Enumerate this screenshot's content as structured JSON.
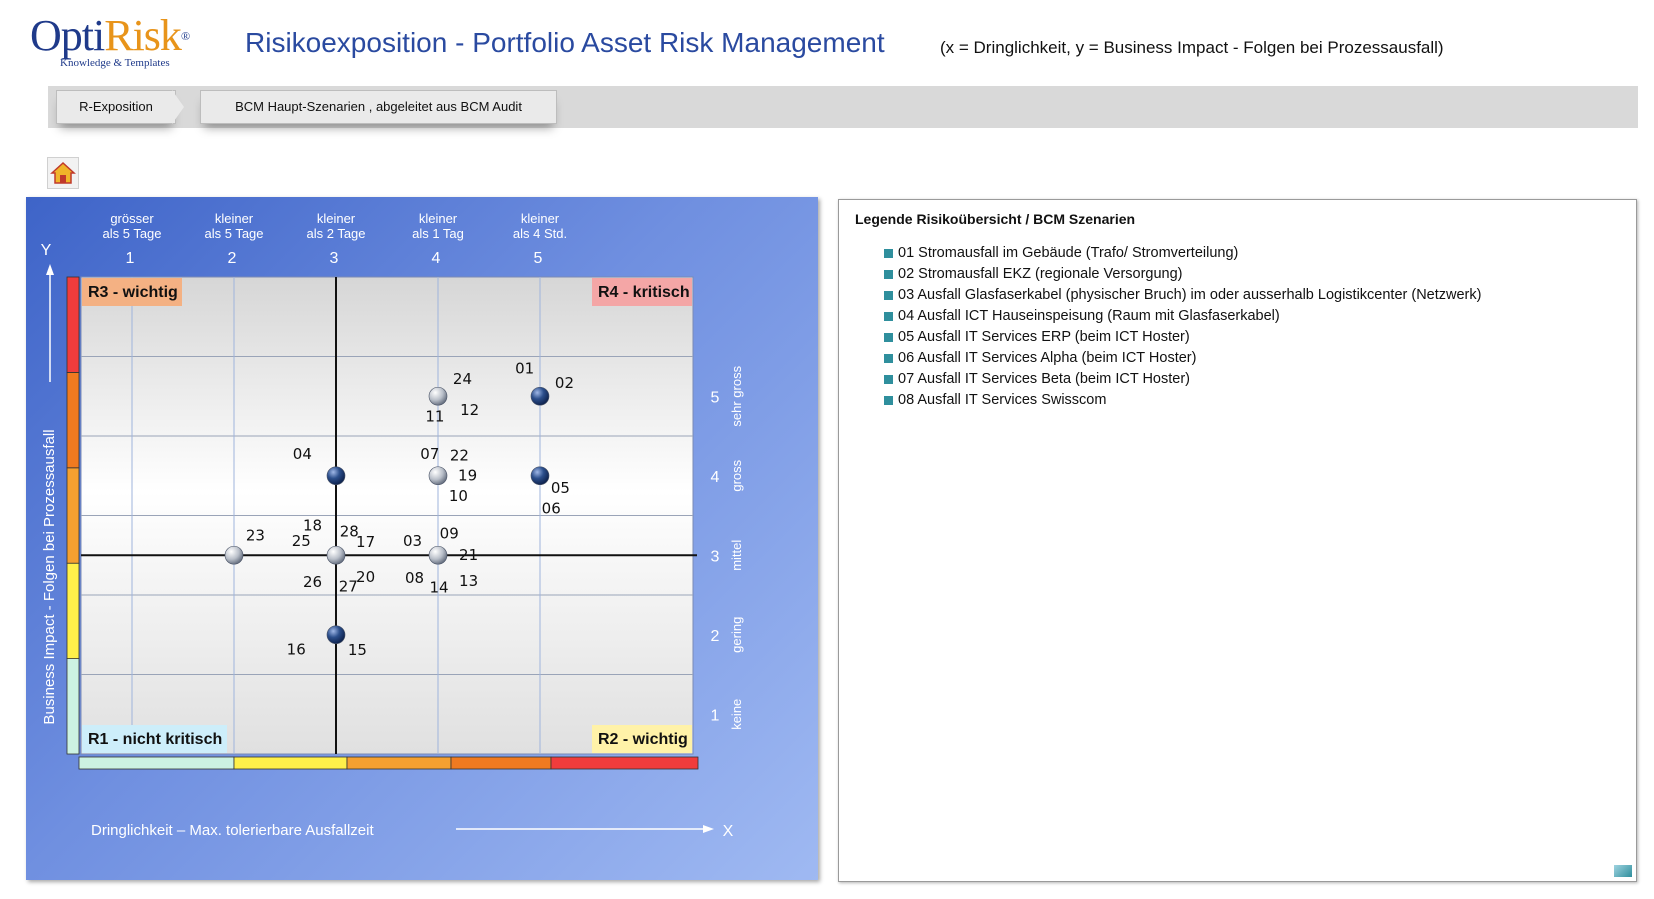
{
  "app": {
    "logo_text_1": "Opti",
    "logo_text_2": "Risk",
    "logo_reg": "®",
    "logo_tagline": "Knowledge & Templates",
    "title": "Risikoexposition - Portfolio Asset Risk Management",
    "subtitle": "(x = Dringlichkeit,    y = Business Impact  -  Folgen bei Prozessausfall)"
  },
  "breadcrumb": {
    "items": [
      {
        "label": "R-Exposition"
      },
      {
        "label": "BCM Haupt-Szenarien , abgeleitet aus BCM Audit"
      }
    ]
  },
  "home_icon": "home-icon",
  "chart_data": {
    "type": "scatter",
    "title": "",
    "xlabel": "Dringlichkeit  –  Max. tolerierbare Ausfallzeit",
    "x_axis_letter": "X",
    "ylabel": "Business Impact  -  Folgen bei Prozessausfall",
    "y_axis_letter": "Y",
    "xlim": [
      0.5,
      6.5
    ],
    "ylim": [
      0.5,
      6.5
    ],
    "x_ticks": [
      {
        "value": 1,
        "line1": "grösser",
        "line2": "als 5 Tage"
      },
      {
        "value": 2,
        "line1": "kleiner",
        "line2": "als 5 Tage"
      },
      {
        "value": 3,
        "line1": "kleiner",
        "line2": "als 2 Tage"
      },
      {
        "value": 4,
        "line1": "kleiner",
        "line2": "als 1 Tag"
      },
      {
        "value": 5,
        "line1": "kleiner",
        "line2": "als 4 Std."
      }
    ],
    "y_ticks": [
      {
        "value": 1,
        "label": "keine"
      },
      {
        "value": 2,
        "label": "gering"
      },
      {
        "value": 3,
        "label": "mittel"
      },
      {
        "value": 4,
        "label": "gross"
      },
      {
        "value": 5,
        "label": "sehr gross"
      }
    ],
    "quadrants": [
      {
        "id": "R3",
        "label": "R3 - wichtig",
        "corner": "top-left",
        "color": "#f4b183"
      },
      {
        "id": "R4",
        "label": "R4 - kritisch",
        "corner": "top-right",
        "color": "#f4a6a6"
      },
      {
        "id": "R1",
        "label": "R1 - nicht kritisch",
        "corner": "bottom-left",
        "color": "#cdeefa"
      },
      {
        "id": "R2",
        "label": "R2 - wichtig",
        "corner": "bottom-right",
        "color": "#fff2a8"
      }
    ],
    "points": [
      {
        "x": 4,
        "y": 5,
        "style": "light"
      },
      {
        "x": 5,
        "y": 5,
        "style": "dark"
      },
      {
        "x": 3,
        "y": 4,
        "style": "dark"
      },
      {
        "x": 4,
        "y": 4,
        "style": "light"
      },
      {
        "x": 5,
        "y": 4,
        "style": "dark"
      },
      {
        "x": 2,
        "y": 3,
        "style": "light"
      },
      {
        "x": 3,
        "y": 3,
        "style": "light"
      },
      {
        "x": 4,
        "y": 3,
        "style": "light"
      },
      {
        "x": 3,
        "y": 2,
        "style": "dark"
      }
    ],
    "point_labels": [
      {
        "text": "24",
        "x": 4.24,
        "y": 5.21
      },
      {
        "text": "01",
        "x": 4.85,
        "y": 5.34
      },
      {
        "text": "02",
        "x": 5.24,
        "y": 5.16
      },
      {
        "text": "11",
        "x": 3.97,
        "y": 4.74
      },
      {
        "text": "12",
        "x": 4.31,
        "y": 4.82
      },
      {
        "text": "04",
        "x": 2.67,
        "y": 4.27
      },
      {
        "text": "07",
        "x": 3.92,
        "y": 4.27
      },
      {
        "text": "22",
        "x": 4.21,
        "y": 4.25
      },
      {
        "text": "19",
        "x": 4.29,
        "y": 4.0
      },
      {
        "text": "10",
        "x": 4.2,
        "y": 3.74
      },
      {
        "text": "05",
        "x": 5.2,
        "y": 3.84
      },
      {
        "text": "06",
        "x": 5.11,
        "y": 3.58
      },
      {
        "text": "23",
        "x": 2.21,
        "y": 3.24
      },
      {
        "text": "18",
        "x": 2.77,
        "y": 3.37
      },
      {
        "text": "25",
        "x": 2.66,
        "y": 3.17
      },
      {
        "text": "28",
        "x": 3.13,
        "y": 3.29
      },
      {
        "text": "17",
        "x": 3.29,
        "y": 3.16
      },
      {
        "text": "03",
        "x": 3.75,
        "y": 3.17
      },
      {
        "text": "09",
        "x": 4.11,
        "y": 3.27
      },
      {
        "text": "21",
        "x": 4.3,
        "y": 3.0
      },
      {
        "text": "26",
        "x": 2.77,
        "y": 2.66
      },
      {
        "text": "27",
        "x": 3.12,
        "y": 2.6
      },
      {
        "text": "20",
        "x": 3.29,
        "y": 2.72
      },
      {
        "text": "08",
        "x": 3.77,
        "y": 2.71
      },
      {
        "text": "14",
        "x": 4.01,
        "y": 2.59
      },
      {
        "text": "13",
        "x": 4.3,
        "y": 2.67
      },
      {
        "text": "16",
        "x": 2.61,
        "y": 1.81
      },
      {
        "text": "15",
        "x": 3.21,
        "y": 1.8
      }
    ],
    "y_scale_colors": [
      "#ccf2e2",
      "#fff04a",
      "#f5a030",
      "#f07a20",
      "#f03c3c"
    ],
    "x_scale_colors": [
      "#ccf2e2",
      "#fff04a",
      "#f5a030",
      "#f07a20",
      "#f03c3c"
    ],
    "grid": true
  },
  "legend": {
    "title": "Legende Risikoübersicht / BCM Szenarien",
    "items": [
      "01  Stromausfall im Gebäude (Trafo/ Stromverteilung)",
      "02  Stromausfall EKZ (regionale Versorgung)",
      "03  Ausfall Glasfaserkabel (physischer Bruch) im oder ausserhalb Logistikcenter (Netzwerk)",
      "04  Ausfall ICT Hauseinspeisung (Raum mit Glasfaserkabel)",
      "05  Ausfall IT Services ERP (beim ICT Hoster)",
      "06  Ausfall IT Services Alpha (beim ICT Hoster)",
      "07  Ausfall IT Services Beta (beim ICT Hoster)",
      "08  Ausfall IT Services Swisscom"
    ],
    "marker_color": "#2f8f9d"
  }
}
